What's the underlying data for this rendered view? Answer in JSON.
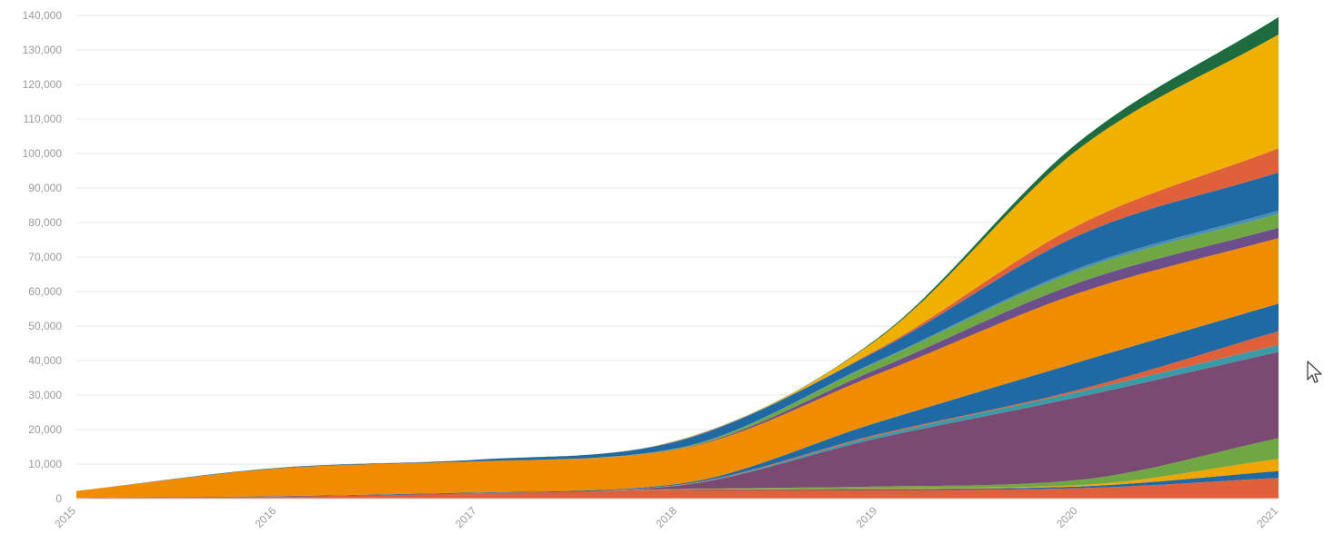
{
  "chart_data": {
    "type": "area",
    "stacked": true,
    "title": "",
    "xlabel": "",
    "ylabel": "",
    "x": [
      "2015",
      "2016",
      "2017",
      "2018",
      "2019",
      "2020",
      "2021"
    ],
    "ylim": [
      0,
      140000
    ],
    "yticks": [
      0,
      10000,
      20000,
      30000,
      40000,
      50000,
      60000,
      70000,
      80000,
      90000,
      100000,
      110000,
      120000,
      130000,
      140000
    ],
    "ytick_labels": [
      "0",
      "10,000",
      "20,000",
      "30,000",
      "40,000",
      "50,000",
      "60,000",
      "70,000",
      "80,000",
      "90,000",
      "100,000",
      "110,000",
      "120,000",
      "130,000",
      "140,000"
    ],
    "grid": true,
    "legend": "none",
    "series": [
      {
        "color": "#e0603a",
        "values": [
          200,
          600,
          1500,
          2500,
          2500,
          3000,
          6000
        ]
      },
      {
        "color": "#1f6aa5",
        "values": [
          0,
          0,
          0,
          100,
          300,
          500,
          2000
        ]
      },
      {
        "color": "#f0a500",
        "values": [
          0,
          0,
          0,
          50,
          200,
          400,
          3500
        ]
      },
      {
        "color": "#6fa843",
        "values": [
          0,
          0,
          0,
          100,
          500,
          1500,
          6000
        ]
      },
      {
        "color": "#7b4a73",
        "values": [
          0,
          0,
          100,
          1000,
          14000,
          24000,
          25000
        ]
      },
      {
        "color": "#3b9aa8",
        "values": [
          0,
          0,
          0,
          100,
          800,
          1500,
          2000
        ]
      },
      {
        "color": "#e0603a",
        "values": [
          0,
          0,
          0,
          100,
          300,
          600,
          4000
        ]
      },
      {
        "color": "#1f6aa5",
        "values": [
          0,
          100,
          200,
          300,
          3500,
          8000,
          8000
        ]
      },
      {
        "color": "#f08c00",
        "values": [
          2000,
          8000,
          9000,
          10000,
          14000,
          20000,
          19000
        ]
      },
      {
        "color": "#6b4e8a",
        "values": [
          0,
          0,
          0,
          100,
          1500,
          3000,
          3000
        ]
      },
      {
        "color": "#6fa843",
        "values": [
          0,
          0,
          0,
          200,
          2000,
          3500,
          4000
        ]
      },
      {
        "color": "#4a90b5",
        "values": [
          0,
          0,
          0,
          50,
          300,
          700,
          1000
        ]
      },
      {
        "color": "#1f6aa5",
        "values": [
          0,
          200,
          500,
          2000,
          3000,
          9500,
          11000
        ]
      },
      {
        "color": "#e0603a",
        "values": [
          0,
          0,
          0,
          100,
          300,
          3000,
          7000
        ]
      },
      {
        "color": "#f0b000",
        "values": [
          0,
          0,
          0,
          100,
          3000,
          22000,
          33000
        ]
      },
      {
        "color": "#1e6b3f",
        "values": [
          0,
          0,
          0,
          50,
          300,
          2000,
          5000
        ]
      }
    ]
  }
}
